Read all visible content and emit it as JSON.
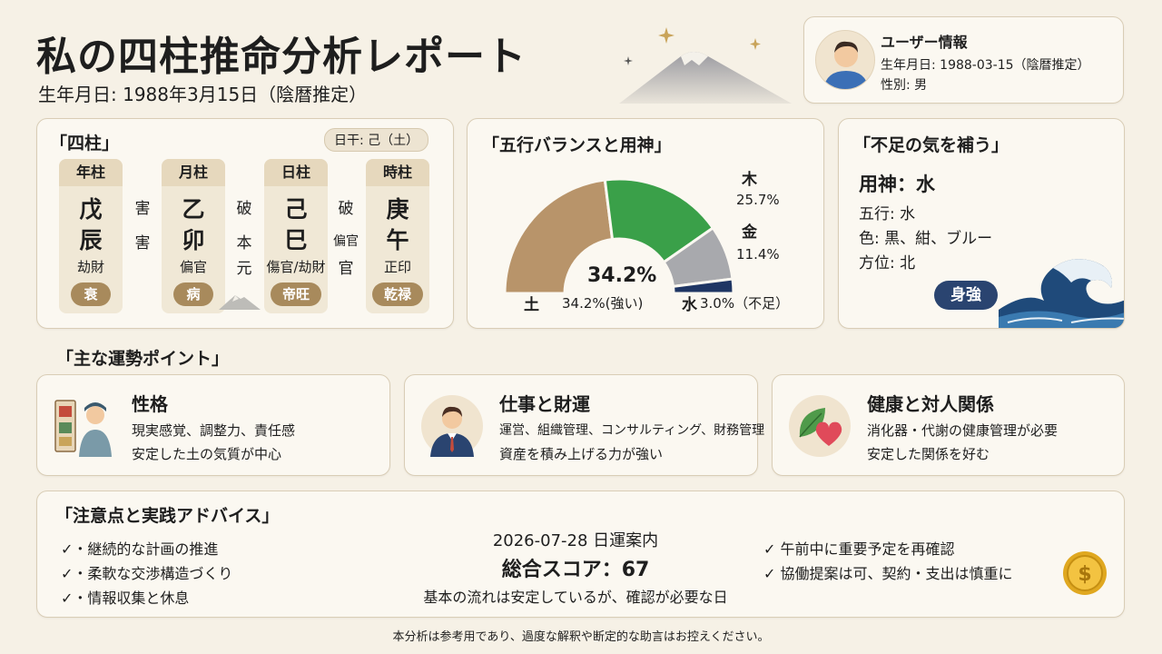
{
  "header": {
    "title": "私の四柱推命分析レポート",
    "birth": "生年月日: 1988年3月15日（陰暦推定）"
  },
  "user": {
    "title": "ユーザー情報",
    "birth": "生年月日: 1988-03-15（陰暦推定）",
    "gender": "性別: 男"
  },
  "pillars": {
    "title": "「四柱」",
    "day_stem": "日干: 己（土）",
    "columns": [
      {
        "header": "年柱",
        "stem": "戊",
        "branch": "辰",
        "star": "劫財",
        "badge": "衰"
      },
      {
        "header": "月柱",
        "stem": "乙",
        "branch": "卯",
        "star": "偏官",
        "badge": "病"
      },
      {
        "header": "日柱",
        "stem": "己",
        "branch": "巳",
        "star": "傷官/劫財",
        "badge": "帝旺"
      },
      {
        "header": "時柱",
        "stem": "庚",
        "branch": "午",
        "star": "正印",
        "badge": "乾禄"
      }
    ],
    "relations": [
      [
        "害",
        "害"
      ],
      [
        "破",
        "本",
        "元"
      ],
      [
        "破",
        "偏官",
        "官"
      ]
    ]
  },
  "five": {
    "title": "「五行バランスと用神」",
    "center": "34.2%",
    "labels": {
      "wood_name": "木",
      "wood_value": "25.7%",
      "metal_name": "金",
      "metal_value": "11.4%",
      "earth_name": "土",
      "earth_value": "34.2%(強い)",
      "water_name": "水",
      "water_value": "3.0%（不足）"
    },
    "colors": {
      "earth": "#b8946a",
      "wood": "#3aa049",
      "metal": "#a8a9ad",
      "water": "#1f3664"
    }
  },
  "chart_data": {
    "type": "pie",
    "categories": [
      "土",
      "木",
      "金",
      "水"
    ],
    "values": [
      34.2,
      25.7,
      11.4,
      3.0
    ]
  },
  "supplement": {
    "title": "「不足の気を補う」",
    "yongshen": "用神：水",
    "element": "五行: 水",
    "color": "色: 黒、紺、ブルー",
    "direction": "方位: 北",
    "badge": "身強"
  },
  "fortune": {
    "title": "「主な運勢ポイント」",
    "cards": [
      {
        "title": "性格",
        "line1": "現実感覚、調整力、責任感",
        "line2": "安定した土の気質が中心"
      },
      {
        "title": "仕事と財運",
        "line1": "運営、組織管理、コンサルティング、財務管理",
        "line2": "資産を積み上げる力が強い"
      },
      {
        "title": "健康と対人関係",
        "line1": "消化器・代謝の健康管理が必要",
        "line2": "安定した関係を好む"
      }
    ]
  },
  "advice": {
    "title": "「注意点と実践アドバイス」",
    "left": [
      "✓・継続的な計画の推進",
      "✓・柔軟な交渉構造づくり",
      "✓・情報収集と休息"
    ],
    "date": "2026-07-28 日運案内",
    "score": "総合スコア：67",
    "summary": "基本の流れは安定しているが、確認が必要な日",
    "right": [
      "✓ 午前中に重要予定を再確認",
      "✓ 協働提案は可、契約・支出は慎重に"
    ]
  },
  "disclaimer": "本分析は参考用であり、過度な解釈や断定的な助言はお控えください。"
}
